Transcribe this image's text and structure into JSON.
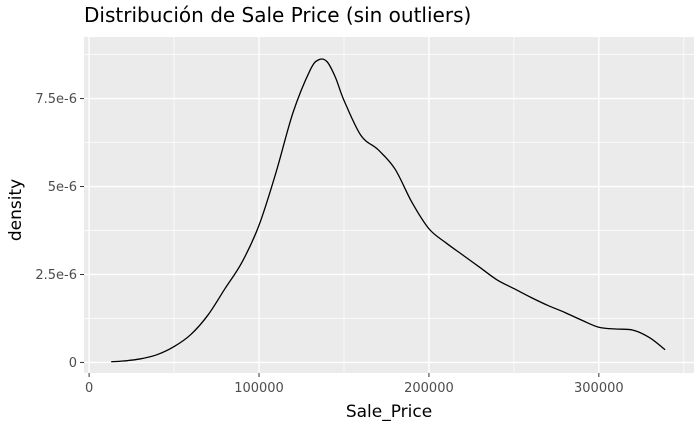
{
  "chart_data": {
    "type": "line",
    "title": "Distribución de Sale Price (sin outliers)",
    "xlabel": "Sale_Price",
    "ylabel": "density",
    "xlim": [
      -3000,
      356000
    ],
    "ylim": [
      -3e-07,
      9.25e-06
    ],
    "x_ticks": [
      0,
      100000,
      200000,
      300000
    ],
    "x_tick_labels": [
      "0",
      "100000",
      "200000",
      "300000"
    ],
    "y_ticks": [
      0,
      2.5e-06,
      5e-06,
      7.5e-06
    ],
    "y_tick_labels": [
      "0",
      "2.5e-6",
      "5e-6",
      "7.5e-6"
    ],
    "grid": true,
    "panel_background": "#ebebeb",
    "line_color": "#000000",
    "series": [
      {
        "x": [
          13000,
          20000,
          30000,
          40000,
          50000,
          60000,
          70000,
          80000,
          90000,
          100000,
          110000,
          120000,
          130000,
          135000,
          140000,
          145000,
          150000,
          160000,
          170000,
          180000,
          190000,
          200000,
          210000,
          220000,
          230000,
          240000,
          250000,
          260000,
          270000,
          280000,
          290000,
          300000,
          310000,
          320000,
          330000,
          339000
        ],
        "y": [
          2e-08,
          4e-08,
          1e-07,
          2.2e-07,
          4.5e-07,
          8e-07,
          1.35e-06,
          2.1e-06,
          2.85e-06,
          3.9e-06,
          5.4e-06,
          7.1e-06,
          8.3e-06,
          8.6e-06,
          8.55e-06,
          8.1e-06,
          7.45e-06,
          6.45e-06,
          6.05e-06,
          5.5e-06,
          4.55e-06,
          3.8e-06,
          3.4e-06,
          3.05e-06,
          2.7e-06,
          2.35e-06,
          2.1e-06,
          1.85e-06,
          1.62e-06,
          1.42e-06,
          1.2e-06,
          1e-06,
          9.5e-07,
          9.2e-07,
          7e-07,
          3.6e-07
        ]
      }
    ]
  }
}
